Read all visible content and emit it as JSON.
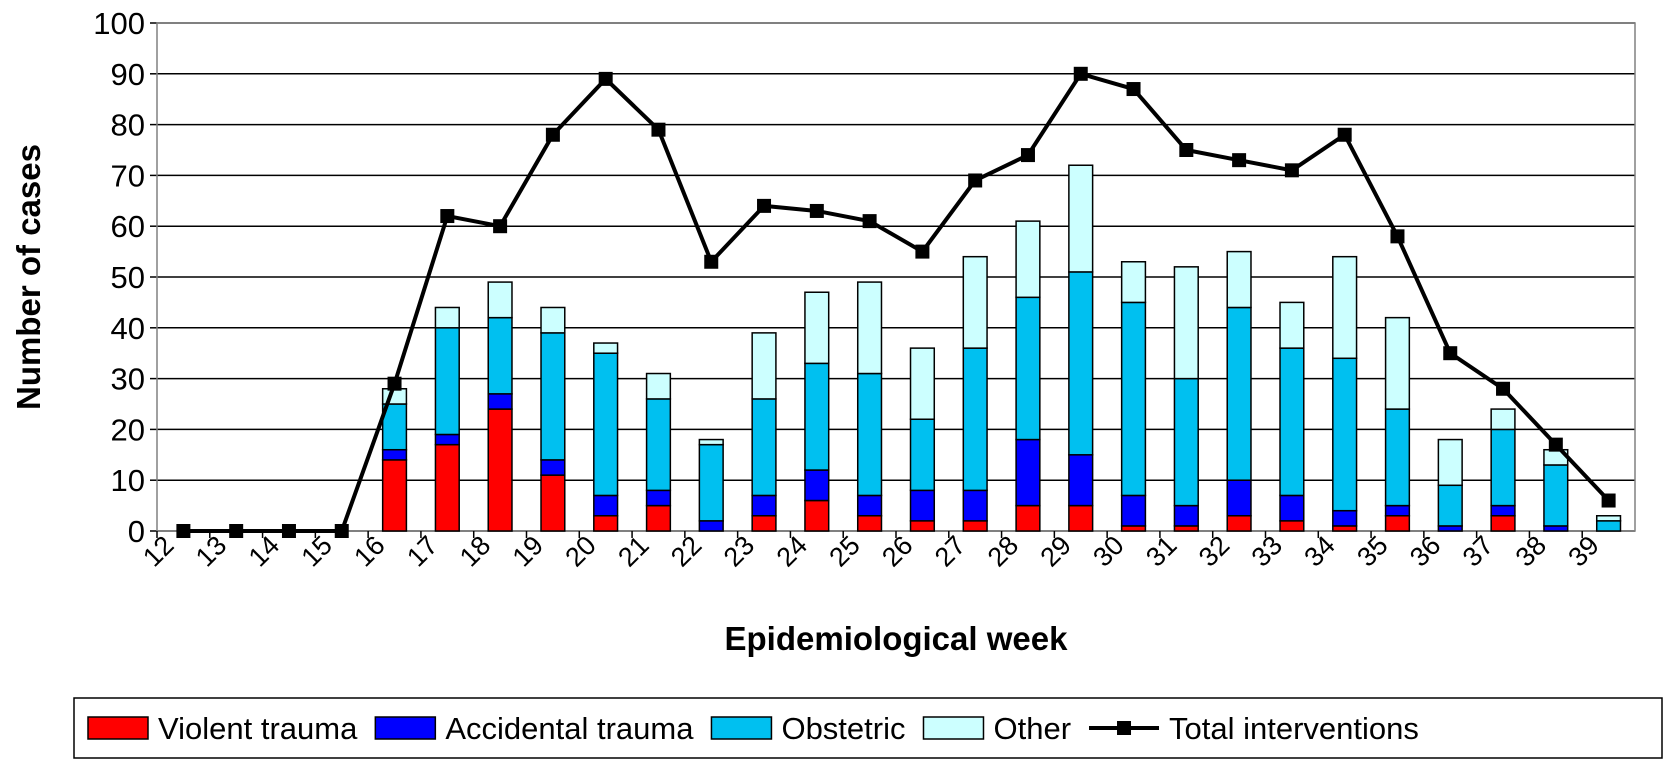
{
  "chart_data": {
    "type": "bar",
    "stacked": true,
    "x_label": "Epidemiological week",
    "y_label": "Number of cases",
    "categories": [
      "12",
      "13",
      "14",
      "15",
      "16",
      "17",
      "18",
      "19",
      "20",
      "21",
      "22",
      "23",
      "24",
      "25",
      "26",
      "27",
      "28",
      "29",
      "30",
      "31",
      "32",
      "33",
      "34",
      "35",
      "36",
      "37",
      "38",
      "39"
    ],
    "series": [
      {
        "name": "Violent trauma",
        "color": "#ff0000",
        "values": [
          null,
          null,
          null,
          null,
          14,
          17,
          24,
          11,
          3,
          5,
          0,
          3,
          6,
          3,
          2,
          2,
          5,
          5,
          1,
          1,
          3,
          2,
          1,
          3,
          0,
          3,
          0,
          0
        ]
      },
      {
        "name": "Accidental trauma",
        "color": "#0000ff",
        "values": [
          null,
          null,
          null,
          null,
          2,
          2,
          3,
          3,
          4,
          3,
          2,
          4,
          6,
          4,
          6,
          6,
          13,
          10,
          6,
          4,
          7,
          5,
          3,
          2,
          1,
          2,
          1,
          0
        ]
      },
      {
        "name": "Obstetric",
        "color": "#00c0f0",
        "values": [
          null,
          null,
          null,
          null,
          9,
          21,
          15,
          25,
          28,
          18,
          15,
          19,
          21,
          24,
          14,
          28,
          28,
          36,
          38,
          25,
          34,
          29,
          30,
          19,
          8,
          15,
          12,
          2
        ]
      },
      {
        "name": "Other",
        "color": "#ccffff",
        "values": [
          null,
          null,
          null,
          null,
          3,
          4,
          7,
          5,
          2,
          5,
          1,
          13,
          14,
          18,
          14,
          18,
          15,
          21,
          8,
          22,
          11,
          9,
          20,
          18,
          9,
          4,
          3,
          1
        ]
      },
      {
        "name": "Total interventions",
        "color": "#000000",
        "type": "line",
        "values": [
          0,
          0,
          0,
          0,
          29,
          62,
          60,
          78,
          89,
          79,
          53,
          64,
          63,
          61,
          55,
          69,
          74,
          90,
          87,
          75,
          73,
          71,
          78,
          58,
          35,
          28,
          17,
          6
        ]
      }
    ],
    "ylim": [
      0,
      100
    ],
    "yticks": [
      0,
      10,
      20,
      30,
      40,
      50,
      60,
      70,
      80,
      90,
      100
    ],
    "grid": true,
    "legend": "bottom"
  }
}
